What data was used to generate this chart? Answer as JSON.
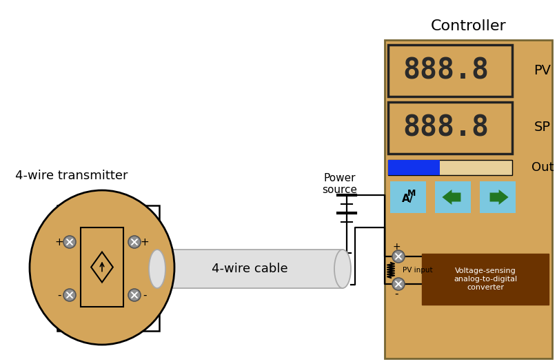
{
  "title": "Controller",
  "transmitter_label": "4-wire transmitter",
  "cable_label": "4-wire cable",
  "power_label": "Power\nsource",
  "pv_label": "PV",
  "sp_label": "SP",
  "out_label": "Out",
  "pv_input_label": "PV input",
  "plus_label": "+",
  "minus_label": "-",
  "converter_label": "Voltage-sensing\nanalog-to-digital\nconverter",
  "bg_color": "#ffffff",
  "controller_bg": "#d4a55a",
  "display_bg": "#d4a55a",
  "display_border": "#222222",
  "display_digit_color": "#2a2a2a",
  "button_bg": "#7bc8e0",
  "converter_bg": "#6b3300",
  "converter_text": "#ffffff",
  "blue_bar_color": "#1133ee",
  "out_bar_bg": "#e8d09a",
  "arrow_green": "#227722",
  "terminal_fill": "#909090",
  "terminal_stroke": "#555555",
  "wire_color": "#000000",
  "transmitter_fill": "#d4a55a",
  "cable_fill": "#e0e0e0",
  "cable_stroke": "#aaaaaa",
  "housing_stroke": "#000000"
}
